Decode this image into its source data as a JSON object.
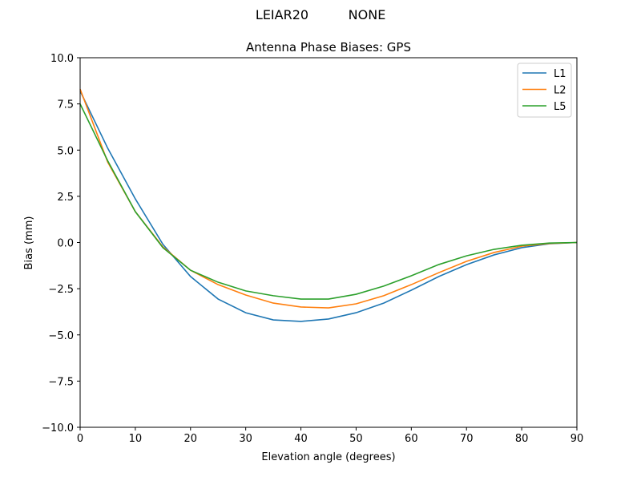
{
  "suptitle": {
    "antenna": "LEIAR20",
    "radome": "NONE"
  },
  "chart_data": {
    "type": "line",
    "title": "Antenna Phase Biases: GPS",
    "xlabel": "Elevation angle (degrees)",
    "ylabel": "Bias (mm)",
    "xlim": [
      0,
      90
    ],
    "ylim": [
      -10,
      10
    ],
    "xticks": [
      0,
      10,
      20,
      30,
      40,
      50,
      60,
      70,
      80,
      90
    ],
    "xtick_labels": [
      "0",
      "10",
      "20",
      "30",
      "40",
      "50",
      "60",
      "70",
      "80",
      "90"
    ],
    "yticks": [
      10,
      7.5,
      5,
      2.5,
      0,
      -2.5,
      -5,
      -7.5,
      -10
    ],
    "ytick_labels": [
      "10.0",
      "7.5",
      "5.0",
      "2.5",
      "0.0",
      "−2.5",
      "−5.0",
      "−7.5",
      "−10.0"
    ],
    "grid": false,
    "legend_position": "top-right",
    "x": [
      0,
      5,
      10,
      15,
      20,
      25,
      30,
      35,
      40,
      45,
      50,
      55,
      60,
      65,
      70,
      75,
      80,
      85,
      90
    ],
    "series": [
      {
        "name": "L1",
        "color": "#1f77b4",
        "values": [
          8.2,
          5.1,
          2.36,
          -0.1,
          -1.84,
          -3.06,
          -3.8,
          -4.19,
          -4.27,
          -4.14,
          -3.8,
          -3.28,
          -2.58,
          -1.84,
          -1.2,
          -0.67,
          -0.28,
          -0.07,
          0
        ]
      },
      {
        "name": "L2",
        "color": "#ff7f0e",
        "values": [
          8.3,
          4.35,
          1.67,
          -0.24,
          -1.5,
          -2.28,
          -2.84,
          -3.28,
          -3.49,
          -3.54,
          -3.32,
          -2.88,
          -2.28,
          -1.63,
          -1.02,
          -0.54,
          -0.2,
          -0.05,
          0
        ]
      },
      {
        "name": "L5",
        "color": "#2ca02c",
        "values": [
          7.5,
          4.42,
          1.67,
          -0.28,
          -1.5,
          -2.15,
          -2.62,
          -2.88,
          -3.06,
          -3.06,
          -2.8,
          -2.36,
          -1.8,
          -1.19,
          -0.72,
          -0.37,
          -0.15,
          -0.03,
          0
        ]
      }
    ]
  }
}
